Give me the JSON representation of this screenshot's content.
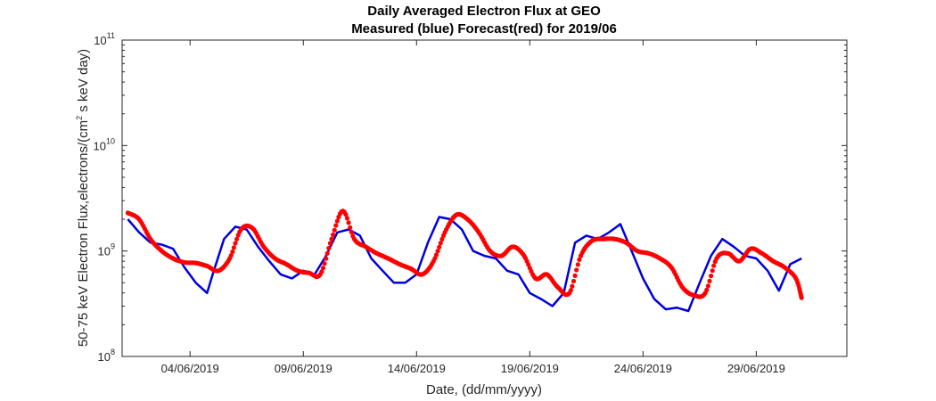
{
  "chart_data": {
    "type": "line",
    "title": "Daily Averaged Electron Flux at GEO",
    "subtitle": "Measured (blue) Forecast(red) for 2019/06",
    "xlabel": "Date, (dd/mm/yyyy)",
    "ylabel": "50-75 keV Electron Flux,electrons/(cm² s keV day)",
    "ylabel_parts": {
      "before": "50-75 keV Electron Flux,electrons/(cm",
      "sup": "2",
      "after": " s keV day)"
    },
    "y_scale": "log",
    "ylim": [
      100000000.0,
      100000000000.0
    ],
    "xlim": [
      "2019-06-01T00:00",
      "2019-07-03T00:00"
    ],
    "y_ticks": [
      {
        "value": 100000000.0,
        "base": "10",
        "exp": "8"
      },
      {
        "value": 1000000000.0,
        "base": "10",
        "exp": "9"
      },
      {
        "value": 10000000000.0,
        "base": "10",
        "exp": "10"
      },
      {
        "value": 100000000000.0,
        "base": "10",
        "exp": "11"
      }
    ],
    "x_ticks": [
      {
        "value": "2019-06-04",
        "label": "04/06/2019"
      },
      {
        "value": "2019-06-09",
        "label": "09/06/2019"
      },
      {
        "value": "2019-06-14",
        "label": "14/06/2019"
      },
      {
        "value": "2019-06-19",
        "label": "19/06/2019"
      },
      {
        "value": "2019-06-24",
        "label": "24/06/2019"
      },
      {
        "value": "2019-06-29",
        "label": "29/06/2019"
      }
    ],
    "grid": false,
    "series": [
      {
        "style": "line",
        "color": "#0000dd",
        "x": [
          "2019-06-01T06:00",
          "2019-06-01T18:00",
          "2019-06-02T06:00",
          "2019-06-02T18:00",
          "2019-06-03T06:00",
          "2019-06-03T18:00",
          "2019-06-04T06:00",
          "2019-06-04T18:00",
          "2019-06-05T00:00",
          "2019-06-05T12:00",
          "2019-06-06T00:00",
          "2019-06-06T12:00",
          "2019-06-07T00:00",
          "2019-06-07T12:00",
          "2019-06-08T00:00",
          "2019-06-08T12:00",
          "2019-06-09T00:00",
          "2019-06-09T12:00",
          "2019-06-10T00:00",
          "2019-06-10T12:00",
          "2019-06-11T00:00",
          "2019-06-11T12:00",
          "2019-06-12T00:00",
          "2019-06-12T12:00",
          "2019-06-13T00:00",
          "2019-06-13T12:00",
          "2019-06-14T00:00",
          "2019-06-14T12:00",
          "2019-06-15T00:00",
          "2019-06-15T12:00",
          "2019-06-16T00:00",
          "2019-06-16T12:00",
          "2019-06-17T00:00",
          "2019-06-17T12:00",
          "2019-06-18T00:00",
          "2019-06-18T12:00",
          "2019-06-19T00:00",
          "2019-06-19T12:00",
          "2019-06-20T00:00",
          "2019-06-20T12:00",
          "2019-06-21T00:00",
          "2019-06-21T12:00",
          "2019-06-22T00:00",
          "2019-06-22T12:00",
          "2019-06-23T00:00",
          "2019-06-23T12:00",
          "2019-06-24T00:00",
          "2019-06-24T12:00",
          "2019-06-25T00:00",
          "2019-06-25T12:00",
          "2019-06-26T00:00",
          "2019-06-26T12:00",
          "2019-06-27T00:00",
          "2019-06-27T12:00",
          "2019-06-28T00:00",
          "2019-06-28T12:00",
          "2019-06-29T00:00",
          "2019-06-29T12:00",
          "2019-06-30T00:00",
          "2019-06-30T12:00",
          "2019-07-01T00:00"
        ],
        "y": [
          2000000000.0,
          1500000000.0,
          1200000000.0,
          1150000000.0,
          1050000000.0,
          700000000.0,
          500000000.0,
          400000000.0,
          600000000.0,
          1300000000.0,
          1700000000.0,
          1600000000.0,
          1100000000.0,
          800000000.0,
          600000000.0,
          550000000.0,
          650000000.0,
          600000000.0,
          900000000.0,
          1500000000.0,
          1600000000.0,
          1400000000.0,
          850000000.0,
          650000000.0,
          500000000.0,
          500000000.0,
          600000000.0,
          1200000000.0,
          2100000000.0,
          2000000000.0,
          1600000000.0,
          1000000000.0,
          900000000.0,
          850000000.0,
          650000000.0,
          600000000.0,
          400000000.0,
          350000000.0,
          300000000.0,
          400000000.0,
          1200000000.0,
          1400000000.0,
          1300000000.0,
          1500000000.0,
          1800000000.0,
          1000000000.0,
          550000000.0,
          350000000.0,
          280000000.0,
          290000000.0,
          270000000.0,
          500000000.0,
          900000000.0,
          1300000000.0,
          1100000000.0,
          900000000.0,
          850000000.0,
          650000000.0,
          420000000.0,
          750000000.0,
          850000000.0
        ]
      },
      {
        "style": "dots",
        "color": "#ff0000",
        "x": [
          "2019-06-01T06:00",
          "2019-06-01T18:00",
          "2019-06-02T06:00",
          "2019-06-02T18:00",
          "2019-06-03T06:00",
          "2019-06-03T18:00",
          "2019-06-04T06:00",
          "2019-06-04T18:00",
          "2019-06-05T06:00",
          "2019-06-05T18:00",
          "2019-06-06T06:00",
          "2019-06-06T18:00",
          "2019-06-07T06:00",
          "2019-06-07T18:00",
          "2019-06-08T06:00",
          "2019-06-08T18:00",
          "2019-06-09T06:00",
          "2019-06-09T18:00",
          "2019-06-10T06:00",
          "2019-06-10T18:00",
          "2019-06-11T06:00",
          "2019-06-11T18:00",
          "2019-06-12T06:00",
          "2019-06-12T18:00",
          "2019-06-13T06:00",
          "2019-06-13T18:00",
          "2019-06-14T06:00",
          "2019-06-14T18:00",
          "2019-06-15T06:00",
          "2019-06-15T18:00",
          "2019-06-16T06:00",
          "2019-06-16T18:00",
          "2019-06-17T06:00",
          "2019-06-17T18:00",
          "2019-06-18T06:00",
          "2019-06-18T18:00",
          "2019-06-19T06:00",
          "2019-06-19T18:00",
          "2019-06-20T06:00",
          "2019-06-20T18:00",
          "2019-06-21T06:00",
          "2019-06-21T18:00",
          "2019-06-22T06:00",
          "2019-06-22T18:00",
          "2019-06-23T06:00",
          "2019-06-23T18:00",
          "2019-06-24T06:00",
          "2019-06-24T18:00",
          "2019-06-25T06:00",
          "2019-06-25T18:00",
          "2019-06-26T06:00",
          "2019-06-26T18:00",
          "2019-06-27T06:00",
          "2019-06-27T18:00",
          "2019-06-28T06:00",
          "2019-06-28T18:00",
          "2019-06-29T06:00",
          "2019-06-29T18:00",
          "2019-06-30T06:00",
          "2019-06-30T18:00",
          "2019-07-01T00:00"
        ],
        "y": [
          2300000000.0,
          2000000000.0,
          1300000000.0,
          1000000000.0,
          850000000.0,
          780000000.0,
          770000000.0,
          720000000.0,
          650000000.0,
          850000000.0,
          1600000000.0,
          1650000000.0,
          1100000000.0,
          850000000.0,
          750000000.0,
          650000000.0,
          620000000.0,
          600000000.0,
          1300000000.0,
          2400000000.0,
          1300000000.0,
          1100000000.0,
          950000000.0,
          850000000.0,
          750000000.0,
          680000000.0,
          600000000.0,
          800000000.0,
          1500000000.0,
          2200000000.0,
          2000000000.0,
          1500000000.0,
          1000000000.0,
          900000000.0,
          1100000000.0,
          900000000.0,
          550000000.0,
          600000000.0,
          450000000.0,
          400000000.0,
          900000000.0,
          1250000000.0,
          1300000000.0,
          1300000000.0,
          1200000000.0,
          1000000000.0,
          950000000.0,
          850000000.0,
          700000000.0,
          450000000.0,
          380000000.0,
          400000000.0,
          850000000.0,
          950000000.0,
          800000000.0,
          1050000000.0,
          950000000.0,
          800000000.0,
          700000000.0,
          550000000.0,
          360000000.0
        ]
      }
    ]
  }
}
